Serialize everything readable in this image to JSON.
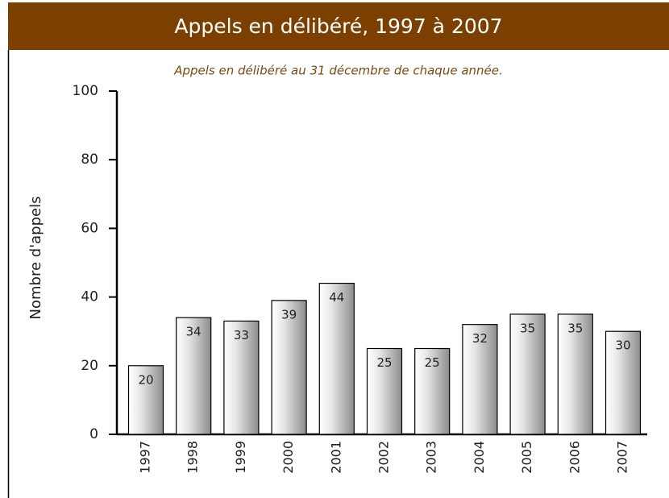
{
  "chart_data": {
    "type": "bar",
    "title": "Appels en délibéré, 1997 à 2007",
    "subtitle": "Appels en délibéré au 31 décembre de chaque année.",
    "y_axis_label": "Nombre d'appels",
    "categories": [
      "1997",
      "1998",
      "1999",
      "2000",
      "2001",
      "2002",
      "2003",
      "2004",
      "2005",
      "2006",
      "2007"
    ],
    "values": [
      20,
      34,
      33,
      39,
      44,
      25,
      25,
      32,
      35,
      35,
      30
    ],
    "ylim": [
      0,
      100
    ],
    "yticks": [
      0,
      20,
      40,
      60,
      80,
      100
    ],
    "header_color": "#7b4000",
    "subtitle_color": "#7a4a10",
    "grid": false
  }
}
